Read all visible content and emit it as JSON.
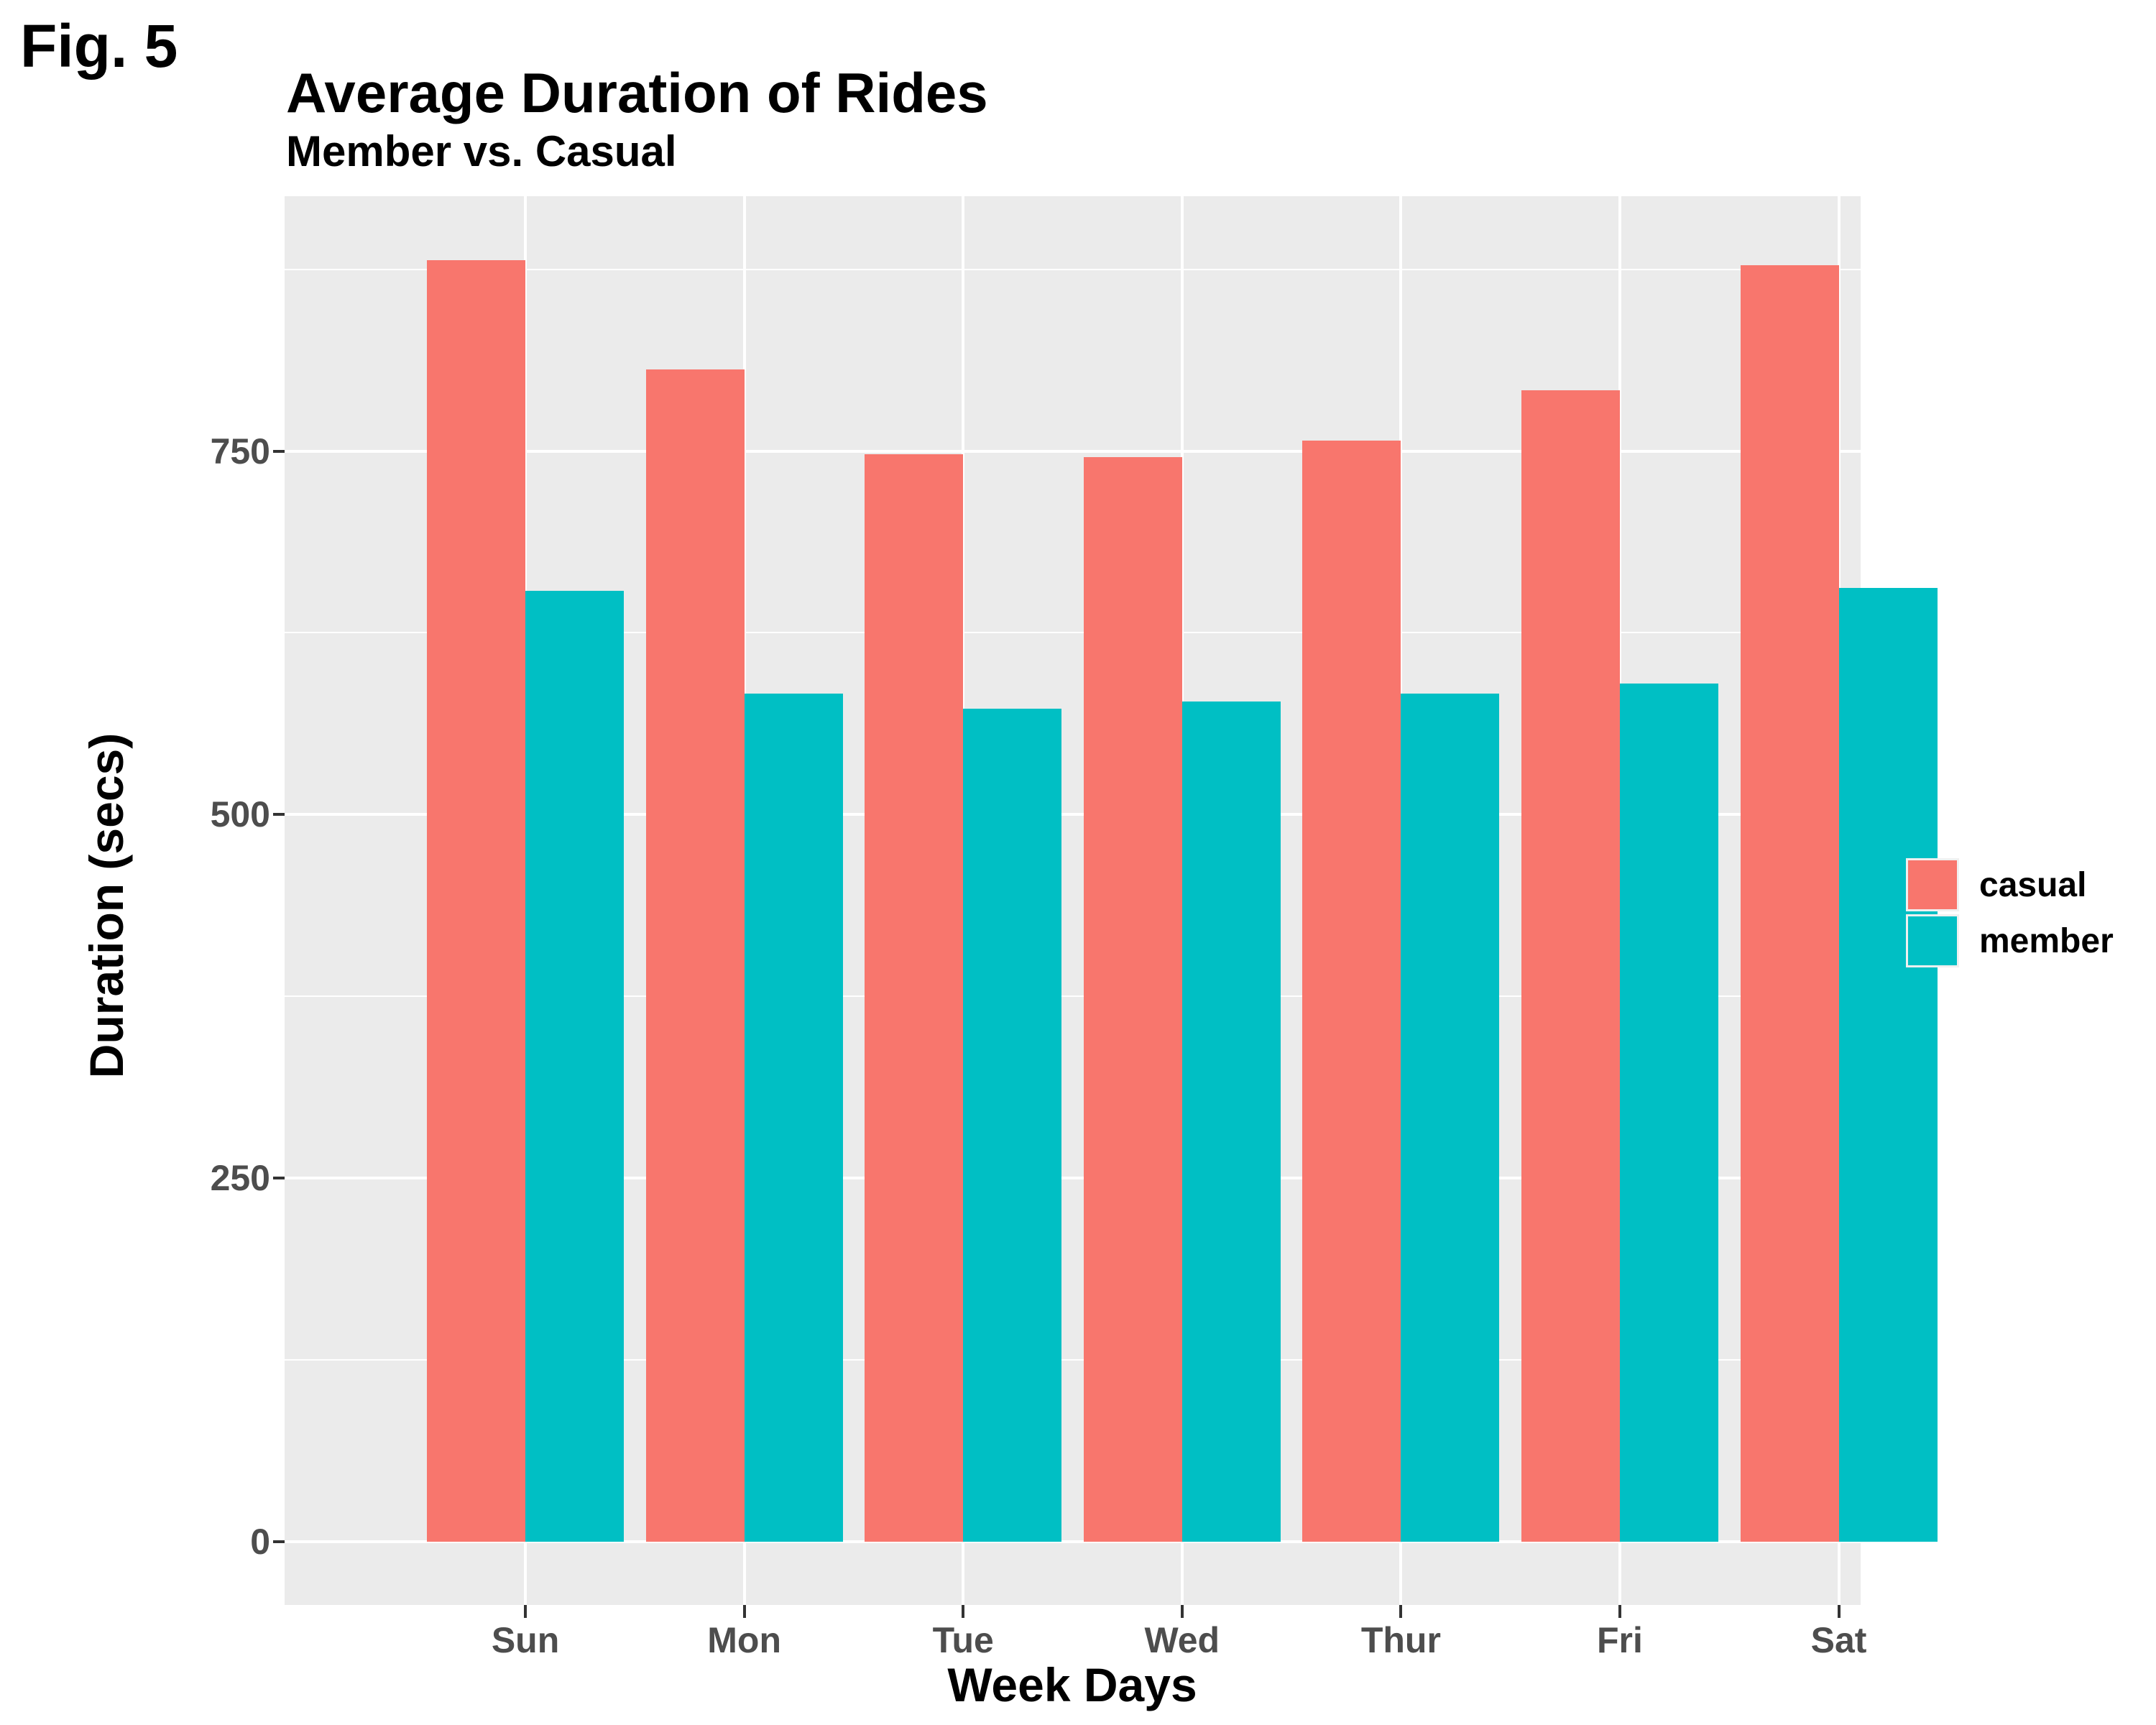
{
  "figure_label": "Fig. 5",
  "chart_data": {
    "type": "bar",
    "grouped": "dodge",
    "title": "Average Duration of Rides",
    "subtitle": "Member vs. Casual",
    "xlabel": "Week Days",
    "ylabel": "Duration (secs)",
    "categories": [
      "Sun",
      "Mon",
      "Tue",
      "Wed",
      "Thur",
      "Fri",
      "Sat"
    ],
    "series": [
      {
        "name": "casual",
        "color": "#F8766D",
        "values": [
          881,
          806,
          748,
          746,
          757,
          792,
          878
        ]
      },
      {
        "name": "member",
        "color": "#00BFC4",
        "values": [
          654,
          583,
          573,
          578,
          583,
          590,
          656
        ]
      }
    ],
    "y_ticks": [
      0,
      250,
      500,
      750
    ],
    "y_tick_labels": [
      "0",
      "250",
      "500",
      "750"
    ],
    "y_minor_ticks": [
      125,
      375,
      625,
      875
    ],
    "ylim": [
      -44,
      925
    ],
    "grid": "on",
    "legend_position": "right",
    "panel_background": "#EBEBEB",
    "gridline_color": "#FFFFFF",
    "tick_label_color": "#4D4D4D"
  }
}
